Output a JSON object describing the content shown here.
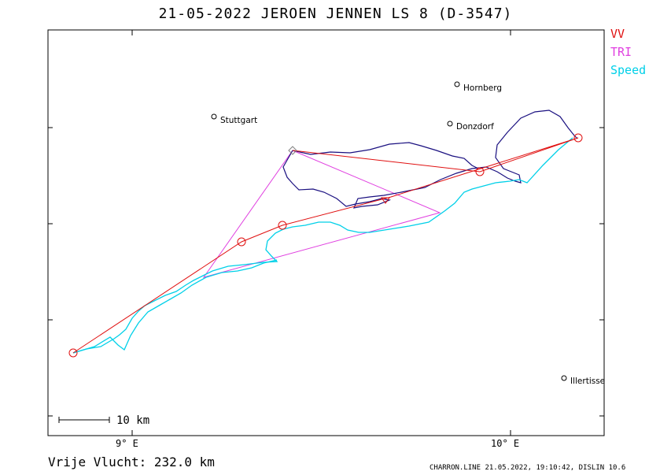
{
  "title": "21-05-2022   JEROEN JENNEN   LS 8 (D-3547)",
  "legend": [
    {
      "label": "VV",
      "color": "#e01010"
    },
    {
      "label": "TRI",
      "color": "#e040e0"
    },
    {
      "label": "Speed",
      "color": "#00d0e8"
    }
  ],
  "places": {
    "hornberg": "Hornberg",
    "stuttgart": "Stuttgart",
    "donzdorf": "Donzdorf",
    "illertissen": "Illertisse"
  },
  "axis": {
    "tick_9e": "9° E",
    "tick_10e": "10° E"
  },
  "scale_label": "10 km",
  "summary": "Vrije Vlucht:  232.0 km",
  "footer": "CHARRON.LINE 21.05.2022, 19:10:42, DISLIN 10.6",
  "colors": {
    "vv": "#e01010",
    "tri": "#e040e0",
    "speed": "#00d0e8",
    "track": "#1a1080"
  }
}
